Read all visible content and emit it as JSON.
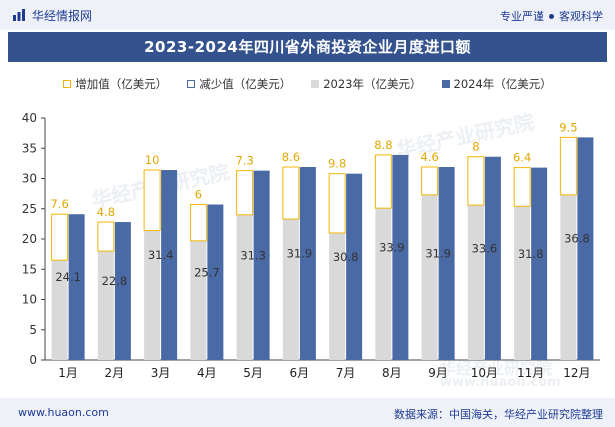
{
  "header": {
    "logo_text": "华经情报网",
    "tagline_left": "专业严谨",
    "tagline_right": "客观科学"
  },
  "title": "2023-2024年四川省外商投资企业月度进口额",
  "legend": {
    "increase": "增加值（亿美元）",
    "decrease": "减少值（亿美元）",
    "y2023": "2023年（亿美元）",
    "y2024": "2024年（亿美元）"
  },
  "footer": {
    "site": "www.huaon.com",
    "source": "数据来源：中国海关，华经产业研究院整理"
  },
  "watermarks": [
    "华经产业研究院",
    "www.huaon.com"
  ],
  "colors": {
    "y2023": "#d9d9d9",
    "y2024": "#4a6aa5",
    "increase": "#f2b705",
    "decrease": "#4a6aa5",
    "title_bg": "#34528e"
  },
  "chart_data": {
    "type": "bar",
    "title": "2023-2024年四川省外商投资企业月度进口额",
    "xlabel": "",
    "ylabel": "",
    "ylim": [
      0,
      40
    ],
    "yticks": [
      0,
      5,
      10,
      15,
      20,
      25,
      30,
      35,
      40
    ],
    "categories": [
      "1月",
      "2月",
      "3月",
      "4月",
      "5月",
      "6月",
      "7月",
      "8月",
      "9月",
      "10月",
      "11月",
      "12月"
    ],
    "series": [
      {
        "name": "2023年（亿美元）",
        "values": [
          16.5,
          18.0,
          21.4,
          19.7,
          24.0,
          23.3,
          21.0,
          25.1,
          27.3,
          25.6,
          25.4,
          27.3
        ]
      },
      {
        "name": "2024年（亿美元）",
        "values": [
          24.1,
          22.8,
          31.4,
          25.7,
          31.3,
          31.9,
          30.8,
          33.9,
          31.9,
          33.6,
          31.8,
          36.8
        ]
      },
      {
        "name": "增加值（亿美元）",
        "values": [
          7.6,
          4.8,
          10,
          6,
          7.3,
          8.6,
          9.8,
          8.8,
          4.6,
          8,
          6.4,
          9.5
        ]
      },
      {
        "name": "减少值（亿美元）",
        "values": [
          0,
          0,
          0,
          0,
          0,
          0,
          0,
          0,
          0,
          0,
          0,
          0
        ]
      }
    ],
    "bar_labels_2024": [
      "24.1",
      "22.8",
      "31.4",
      "25.7",
      "31.3",
      "31.9",
      "30.8",
      "33.9",
      "31.9",
      "33.6",
      "31.8",
      "36.8"
    ],
    "increase_labels": [
      "7.6",
      "4.8",
      "10",
      "6",
      "7.3",
      "8.6",
      "9.8",
      "8.8",
      "4.6",
      "8",
      "6.4",
      "9.5"
    ],
    "legend_position": "top"
  }
}
